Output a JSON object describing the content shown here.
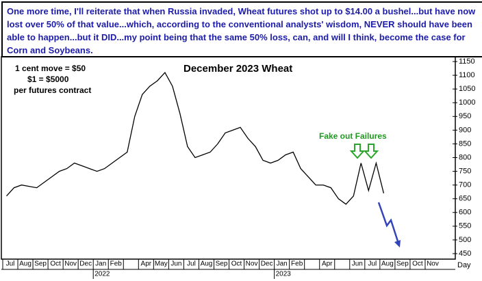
{
  "chart_data": {
    "type": "line",
    "title": "December 2023 Wheat",
    "note": "One more time, I'll reiterate that when Russia invaded, Wheat futures shot up to $14.00 a bushel...but have now lost over 50% of that value...which, according to the conventional analysts' wisdom, NEVER should have been able to happen...but it DID...my point being that the same 50% loss, can, and will I think, become the case for Corn and Soybeans.",
    "annotations": [
      "1 cent move = $50",
      "$1 = $5000",
      "per futures contract",
      "Fake out Failures"
    ],
    "x_label": "Day",
    "years": [
      "2022",
      "2023"
    ],
    "categories": [
      "Jul",
      null,
      "Aug",
      null,
      "Sep",
      null,
      "Oct",
      null,
      "Nov",
      null,
      "Dec",
      null,
      "Jan",
      null,
      "Feb",
      null,
      null,
      null,
      "Apr",
      null,
      "May",
      null,
      "Jun",
      null,
      "Jul",
      null,
      "Aug",
      null,
      "Sep",
      null,
      "Oct",
      null,
      "Nov",
      null,
      "Dec",
      null,
      "Jan",
      null,
      "Feb",
      null,
      null,
      null,
      "Apr",
      null,
      null,
      null,
      "Jun",
      null,
      "Jul",
      null,
      "Aug",
      null,
      "Sep",
      null,
      "Oct",
      null,
      "Nov",
      null
    ],
    "series": [
      {
        "name": "December 2023 Wheat",
        "color": "#000000",
        "values": [
          660,
          690,
          700,
          695,
          690,
          710,
          730,
          750,
          760,
          780,
          770,
          760,
          750,
          760,
          780,
          800,
          820,
          950,
          1030,
          1060,
          1080,
          1110,
          1060,
          960,
          840,
          800,
          810,
          820,
          850,
          890,
          900,
          910,
          870,
          840,
          790,
          780,
          790,
          810,
          820,
          760,
          730,
          700,
          700,
          690,
          650,
          630,
          660,
          780,
          680,
          780,
          670,
          null,
          null,
          null,
          null,
          null,
          null,
          null
        ]
      }
    ],
    "ylim": [
      430,
      1167.5
    ],
    "yticks": [
      450,
      500,
      550,
      600,
      650,
      700,
      750,
      800,
      850,
      900,
      950,
      1000,
      1050,
      1100,
      1150
    ],
    "y_axis_side": "right",
    "grid": false
  }
}
